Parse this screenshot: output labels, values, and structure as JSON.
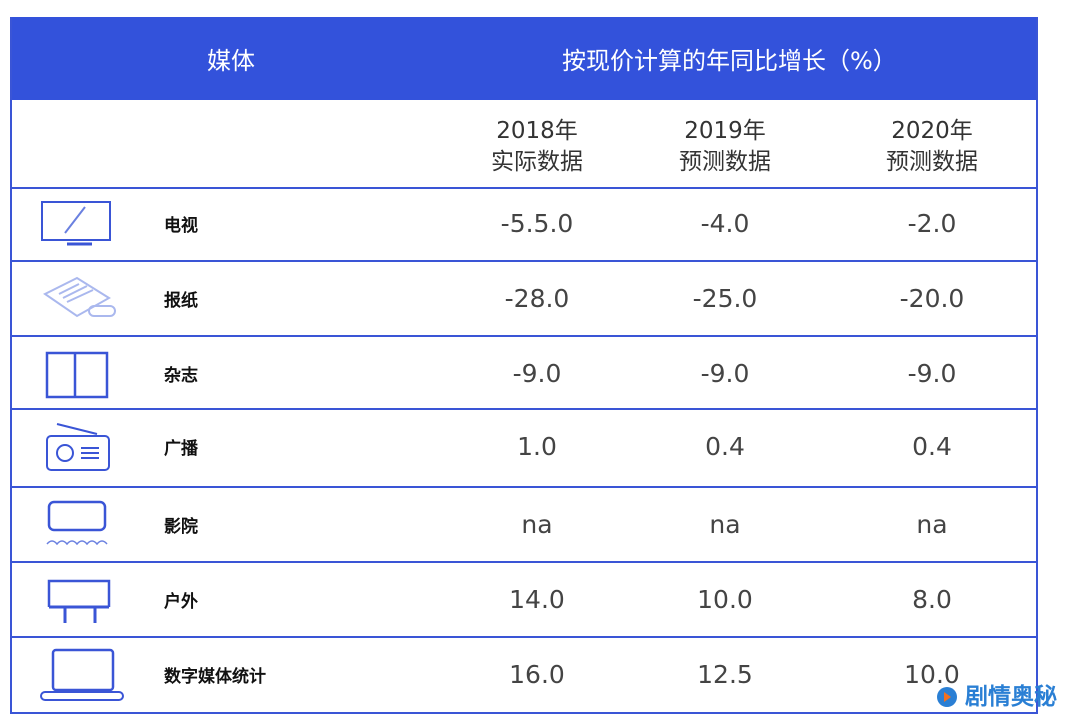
{
  "chart_data": {
    "type": "table",
    "header": {
      "media": "媒体",
      "growth": "按现价计算的年同比增长（%）"
    },
    "columns": [
      [
        "2018年",
        "实际数据"
      ],
      [
        "2019年",
        "预测数据"
      ],
      [
        "2020年",
        "预测数据"
      ]
    ],
    "rows": [
      {
        "icon": "tv-icon",
        "label": "电视",
        "values": [
          "-5.5.0",
          "-4.0",
          "-2.0"
        ]
      },
      {
        "icon": "newspaper-icon",
        "label": "报纸",
        "values": [
          "-28.0",
          "-25.0",
          "-20.0"
        ]
      },
      {
        "icon": "book-icon",
        "label": "杂志",
        "values": [
          "-9.0",
          "-9.0",
          "-9.0"
        ]
      },
      {
        "icon": "radio-icon",
        "label": "广播",
        "values": [
          "1.0",
          "0.4",
          "0.4"
        ]
      },
      {
        "icon": "cinema-icon",
        "label": "影院",
        "values": [
          "na",
          "na",
          "na"
        ]
      },
      {
        "icon": "billboard-icon",
        "label": "户外",
        "values": [
          "14.0",
          "10.0",
          "8.0"
        ]
      },
      {
        "icon": "laptop-icon",
        "label": "数字媒体统计",
        "values": [
          "16.0",
          "12.5",
          "10.0"
        ]
      }
    ],
    "colors": {
      "header": "#3352db",
      "border": "#3a55d6"
    }
  },
  "watermark": "剧情奥秘"
}
